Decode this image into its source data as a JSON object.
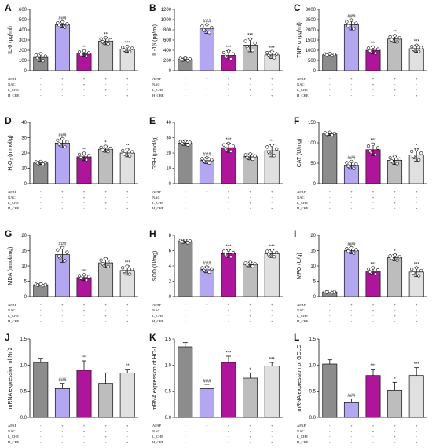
{
  "figure": {
    "colors": [
      "#8c8c8c",
      "#b3a7f2",
      "#b0149a",
      "#bdbdbd",
      "#e0e0e0"
    ],
    "rows": [
      "APAP",
      "NAC",
      "L_CHE",
      "H_CHE"
    ],
    "row_labels_on_panels": [
      "A",
      "B",
      "C",
      "D",
      "E",
      "F",
      "G",
      "H",
      "I",
      "J",
      "K",
      "L"
    ]
  },
  "chart_data": [
    {
      "type": "bar",
      "label": "A",
      "ylabel": "IL-6 (pg/ml)",
      "ylim": [
        0,
        600
      ],
      "ticks": [
        0,
        100,
        200,
        300,
        400,
        500,
        600
      ],
      "values": [
        130,
        450,
        165,
        290,
        210
      ],
      "errors": [
        40,
        30,
        30,
        35,
        30
      ],
      "annotations": [
        "",
        "###",
        "***",
        "**",
        "***"
      ],
      "table": [
        [
          "-",
          "+",
          "+",
          "+",
          "+"
        ],
        [
          "-",
          "-",
          "+",
          "-",
          "-"
        ],
        [
          "-",
          "-",
          "-",
          "+",
          "-"
        ],
        [
          "-",
          "-",
          "-",
          "-",
          "+"
        ]
      ],
      "points": true
    },
    {
      "type": "bar",
      "label": "B",
      "ylabel": "IL-1β (pg/ml)",
      "ylim": [
        0,
        1200
      ],
      "ticks": [
        0,
        200,
        400,
        600,
        800,
        1000,
        1200
      ],
      "values": [
        220,
        820,
        300,
        500,
        310
      ],
      "errors": [
        30,
        90,
        90,
        130,
        70
      ],
      "annotations": [
        "",
        "###",
        "***",
        "***",
        "***"
      ],
      "table": [
        [
          "-",
          "+",
          "+",
          "+",
          "+"
        ],
        [
          "-",
          "-",
          "+",
          "-",
          "-"
        ],
        [
          "-",
          "-",
          "-",
          "+",
          "-"
        ],
        [
          "-",
          "-",
          "-",
          "-",
          "+"
        ]
      ],
      "points": true
    },
    {
      "type": "bar",
      "label": "C",
      "ylabel": "TNF- α (pg/ml)",
      "ylim": [
        0,
        3000
      ],
      "ticks": [
        0,
        500,
        1000,
        1500,
        2000,
        2500,
        3000
      ],
      "values": [
        780,
        2250,
        1000,
        1550,
        1080
      ],
      "errors": [
        60,
        250,
        180,
        180,
        180
      ],
      "annotations": [
        "",
        "###",
        "***",
        "**",
        "***"
      ],
      "table": [
        [
          "-",
          "+",
          "+",
          "+",
          "+"
        ],
        [
          "-",
          "-",
          "+",
          "-",
          "-"
        ],
        [
          "-",
          "-",
          "-",
          "+",
          "-"
        ],
        [
          "-",
          "-",
          "-",
          "-",
          "+"
        ]
      ],
      "points": true
    },
    {
      "type": "bar",
      "label": "D",
      "ylabel": "H₂O₂ (mmol/g)",
      "ylim": [
        0,
        40
      ],
      "ticks": [
        0,
        10,
        20,
        30,
        40
      ],
      "values": [
        13.5,
        26.5,
        17.5,
        22.5,
        20
      ],
      "errors": [
        1,
        3,
        2.5,
        2,
        2.5
      ],
      "annotations": [
        "",
        "###",
        "***",
        "*",
        "**"
      ],
      "table": [
        [
          "-",
          "+",
          "+",
          "+",
          "+"
        ],
        [
          "-",
          "-",
          "+",
          "-",
          "-"
        ],
        [
          "-",
          "-",
          "-",
          "+",
          "-"
        ],
        [
          "-",
          "-",
          "-",
          "-",
          "+"
        ]
      ],
      "points": true
    },
    {
      "type": "bar",
      "label": "E",
      "ylabel": "GSH (μmol/g)",
      "ylim": [
        0,
        40
      ],
      "ticks": [
        0,
        10,
        20,
        30,
        40
      ],
      "values": [
        26.5,
        15,
        23.5,
        17.5,
        21.5
      ],
      "errors": [
        1.5,
        2,
        3,
        2,
        4
      ],
      "annotations": [
        "",
        "###",
        "***",
        "",
        "**"
      ],
      "table": [
        [
          "-",
          "+",
          "+",
          "+",
          "+"
        ],
        [
          "-",
          "-",
          "+",
          "-",
          "-"
        ],
        [
          "-",
          "-",
          "-",
          "+",
          "-"
        ],
        [
          "-",
          "-",
          "-",
          "-",
          "+"
        ]
      ],
      "points": true
    },
    {
      "type": "bar",
      "label": "F",
      "ylabel": "CAT (U/mg)",
      "ylim": [
        0,
        150
      ],
      "ticks": [
        0,
        50,
        100,
        150
      ],
      "values": [
        122,
        45,
        83,
        57,
        70
      ],
      "errors": [
        4,
        10,
        15,
        10,
        15
      ],
      "annotations": [
        "",
        "###",
        "***",
        "",
        "*"
      ],
      "table": [
        [
          "-",
          "+",
          "+",
          "+",
          "+"
        ],
        [
          "-",
          "-",
          "+",
          "-",
          "-"
        ],
        [
          "-",
          "-",
          "-",
          "+",
          "-"
        ],
        [
          "-",
          "-",
          "-",
          "-",
          "+"
        ]
      ],
      "points": true
    },
    {
      "type": "bar",
      "label": "G",
      "ylabel": "MDA (nmol/mg)",
      "ylim": [
        0,
        20
      ],
      "ticks": [
        0,
        5,
        10,
        15,
        20
      ],
      "values": [
        3.8,
        13.7,
        6.2,
        11,
        8.5
      ],
      "errors": [
        0.3,
        2.5,
        1,
        1.5,
        1.5
      ],
      "annotations": [
        "",
        "###",
        "***",
        "",
        "***"
      ],
      "table": [
        [
          "-",
          "+",
          "+",
          "+",
          "+"
        ],
        [
          "-",
          "-",
          "+",
          "-",
          "-"
        ],
        [
          "-",
          "-",
          "-",
          "+",
          "-"
        ],
        [
          "-",
          "-",
          "-",
          "-",
          "+"
        ]
      ],
      "points": true
    },
    {
      "type": "bar",
      "label": "H",
      "ylabel": "SOD (U/mg)",
      "ylim": [
        0,
        8
      ],
      "ticks": [
        0,
        2,
        4,
        6,
        8
      ],
      "values": [
        7.2,
        3.5,
        5.6,
        4.2,
        5.6
      ],
      "errors": [
        0.2,
        0.4,
        0.5,
        0.3,
        0.5
      ],
      "annotations": [
        "",
        "###",
        "***",
        "",
        "***"
      ],
      "table": [
        [
          "-",
          "+",
          "+",
          "+",
          "+"
        ],
        [
          "-",
          "-",
          "+",
          "-",
          "-"
        ],
        [
          "-",
          "-",
          "-",
          "+",
          "-"
        ],
        [
          "-",
          "-",
          "-",
          "-",
          "+"
        ]
      ],
      "points": true
    },
    {
      "type": "bar",
      "label": "I",
      "ylabel": "MPO (U/g)",
      "ylim": [
        0,
        20
      ],
      "ticks": [
        0,
        5,
        10,
        15,
        20
      ],
      "values": [
        1.5,
        15,
        8.3,
        12.7,
        8
      ],
      "errors": [
        0.3,
        1,
        1.2,
        1,
        1.5
      ],
      "annotations": [
        "",
        "###",
        "***",
        "*",
        "***"
      ],
      "table": [
        [
          "-",
          "+",
          "+",
          "+",
          "+"
        ],
        [
          "-",
          "-",
          "+",
          "-",
          "-"
        ],
        [
          "-",
          "-",
          "-",
          "+",
          "-"
        ],
        [
          "-",
          "-",
          "-",
          "-",
          "+"
        ]
      ],
      "points": true
    },
    {
      "type": "bar",
      "label": "J",
      "ylabel": "mRNA expression of Nrf2",
      "ylim": [
        0,
        1.5
      ],
      "ticks": [
        0,
        0.5,
        1.0,
        1.5
      ],
      "values": [
        1.05,
        0.55,
        0.9,
        0.65,
        0.85
      ],
      "errors": [
        0.08,
        0.1,
        0.18,
        0.2,
        0.07
      ],
      "annotations": [
        "",
        "###",
        "***",
        "",
        "**"
      ],
      "table": [
        [
          "-",
          "+",
          "+",
          "+",
          "+"
        ],
        [
          "-",
          "-",
          "+",
          "-",
          "-"
        ],
        [
          "-",
          "-",
          "-",
          "+",
          "-"
        ],
        [
          "-",
          "-",
          "-",
          "-",
          "+"
        ]
      ],
      "points": false
    },
    {
      "type": "bar",
      "label": "K",
      "ylabel": "mRNA expression of HO-1",
      "ylim": [
        0,
        1.5
      ],
      "ticks": [
        0,
        0.5,
        1.0,
        1.5
      ],
      "values": [
        1.35,
        0.55,
        1.05,
        0.75,
        0.98
      ],
      "errors": [
        0.08,
        0.08,
        0.12,
        0.1,
        0.07
      ],
      "annotations": [
        "",
        "###",
        "***",
        "*",
        "***"
      ],
      "table": [
        [
          "-",
          "+",
          "+",
          "+",
          "+"
        ],
        [
          "-",
          "-",
          "+",
          "-",
          "-"
        ],
        [
          "-",
          "-",
          "-",
          "+",
          "-"
        ],
        [
          "-",
          "-",
          "-",
          "-",
          "+"
        ]
      ],
      "points": false
    },
    {
      "type": "bar",
      "label": "L",
      "ylabel": "mRNA expression of GCLC",
      "ylim": [
        0,
        1.5
      ],
      "ticks": [
        0,
        0.5,
        1.0,
        1.5
      ],
      "values": [
        1.02,
        0.28,
        0.8,
        0.52,
        0.8
      ],
      "errors": [
        0.08,
        0.07,
        0.12,
        0.15,
        0.15
      ],
      "annotations": [
        "",
        "###",
        "***",
        "*",
        "***"
      ],
      "table": [
        [
          "-",
          "+",
          "+",
          "+",
          "+"
        ],
        [
          "-",
          "-",
          "+",
          "-",
          "-"
        ],
        [
          "-",
          "-",
          "-",
          "+",
          "-"
        ],
        [
          "-",
          "-",
          "-",
          "-",
          "+"
        ]
      ],
      "points": false
    }
  ]
}
